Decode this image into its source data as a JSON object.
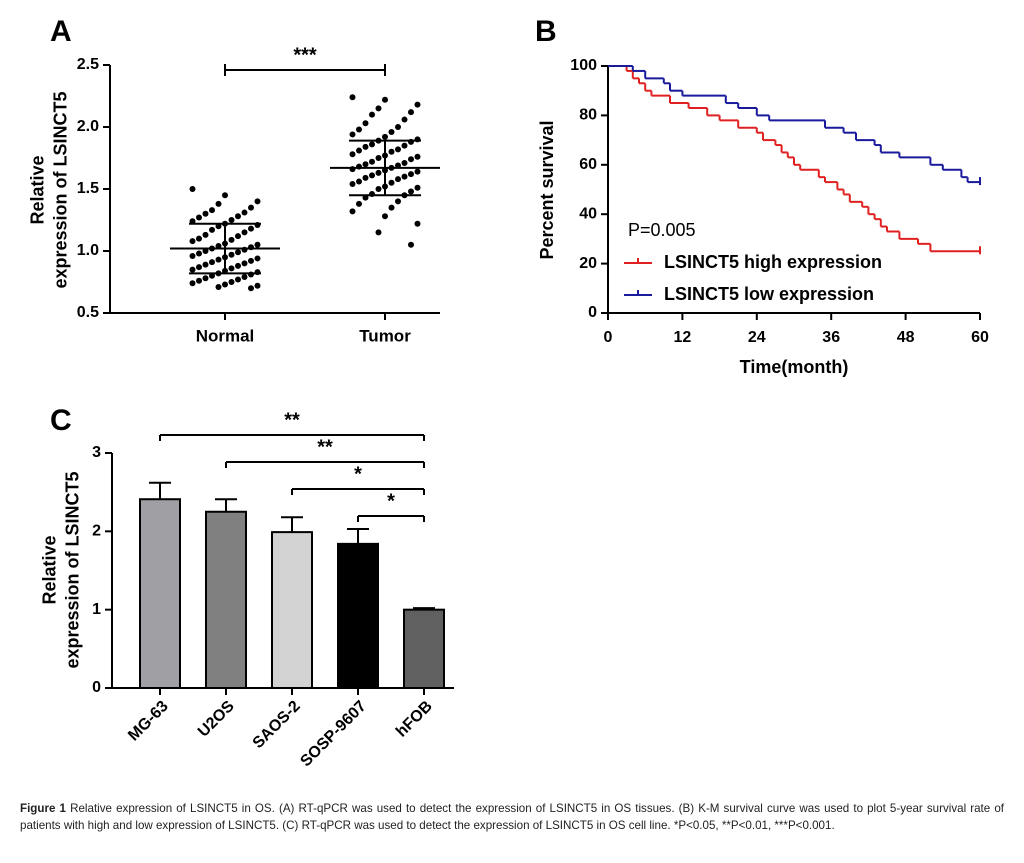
{
  "chart_data": [
    {
      "type": "dot",
      "panel": "A",
      "y_label": [
        "Relative",
        "expression of LSINCT5"
      ],
      "categories": [
        "Normal",
        "Tumor"
      ],
      "values": [
        [
          1.5,
          1.45,
          1.4,
          1.38,
          1.35,
          1.33,
          1.31,
          1.3,
          1.28,
          1.27,
          1.25,
          1.24,
          1.22,
          1.21,
          1.2,
          1.18,
          1.17,
          1.15,
          1.13,
          1.12,
          1.1,
          1.09,
          1.08,
          1.06,
          1.05,
          1.04,
          1.03,
          1.02,
          1.01,
          1.0,
          0.99,
          0.98,
          0.97,
          0.96,
          0.95,
          0.94,
          0.93,
          0.92,
          0.91,
          0.9,
          0.89,
          0.88,
          0.87,
          0.86,
          0.85,
          0.84,
          0.83,
          0.82,
          0.81,
          0.8,
          0.79,
          0.78,
          0.77,
          0.76,
          0.75,
          0.74,
          0.73,
          0.72,
          0.71,
          0.7
        ],
        [
          2.24,
          2.22,
          2.18,
          2.15,
          2.12,
          2.1,
          2.06,
          2.03,
          2.0,
          1.98,
          1.96,
          1.94,
          1.92,
          1.9,
          1.89,
          1.88,
          1.86,
          1.85,
          1.84,
          1.82,
          1.81,
          1.8,
          1.78,
          1.77,
          1.76,
          1.75,
          1.74,
          1.72,
          1.71,
          1.7,
          1.69,
          1.68,
          1.67,
          1.66,
          1.65,
          1.64,
          1.63,
          1.62,
          1.61,
          1.6,
          1.59,
          1.58,
          1.56,
          1.55,
          1.54,
          1.52,
          1.51,
          1.5,
          1.48,
          1.46,
          1.45,
          1.43,
          1.4,
          1.38,
          1.35,
          1.32,
          1.28,
          1.22,
          1.15,
          1.05
        ]
      ],
      "mean": [
        1.02,
        1.67
      ],
      "sd": [
        0.2,
        0.22
      ],
      "color": "#000000",
      "ylim": [
        0.5,
        2.5
      ],
      "yticks": [
        0.5,
        {
          "value": 1,
          "label": "1.0"
        },
        1.5,
        {
          "value": 2,
          "label": "2.0"
        },
        2.5
      ],
      "significance": [
        {
          "label": "***",
          "pair": [
            "Normal",
            "Tumor"
          ]
        }
      ]
    },
    {
      "type": "step",
      "panel": "B",
      "x_label": "Time(month)",
      "y_label": "Percent survival",
      "annotation": "P=0.005",
      "series": [
        {
          "name": "LSINCT5 high expression",
          "color": "#e02020",
          "x": [
            0,
            3,
            4,
            5,
            6,
            7,
            10,
            13,
            16,
            18,
            21,
            24,
            25,
            27,
            28,
            29,
            30,
            31,
            34,
            35,
            37,
            38,
            39,
            41,
            42,
            43,
            44,
            45,
            47,
            50,
            52,
            60
          ],
          "values": [
            100,
            98,
            95,
            93,
            90,
            88,
            85,
            83,
            80,
            78,
            75,
            73,
            70,
            68,
            65,
            63,
            60,
            58,
            55,
            53,
            50,
            48,
            45,
            43,
            40,
            38,
            35,
            33,
            30,
            28,
            25,
            25
          ]
        },
        {
          "name": "LSINCT5 low expression",
          "color": "#1a1a9c",
          "x": [
            0,
            4,
            6,
            9,
            10,
            12,
            19,
            21,
            24,
            26,
            35,
            38,
            40,
            43,
            44,
            47,
            52,
            54,
            57,
            58,
            60
          ],
          "values": [
            100,
            98,
            95,
            93,
            90,
            88,
            85,
            83,
            80,
            78,
            75,
            73,
            70,
            68,
            65,
            63,
            60,
            58,
            55,
            53,
            53
          ]
        }
      ],
      "xlim": [
        0,
        60
      ],
      "xticks": [
        0,
        12,
        24,
        36,
        48,
        60
      ],
      "ylim": [
        0,
        100
      ],
      "yticks": [
        0,
        20,
        40,
        60,
        80,
        100
      ]
    },
    {
      "type": "bar",
      "panel": "C",
      "y_label": [
        "Relative",
        "expression of LSINCT5"
      ],
      "categories": [
        "MG-63",
        "U2OS",
        "SAOS-2",
        "SOSP-9607",
        "hFOB"
      ],
      "values": [
        2.41,
        2.25,
        1.99,
        1.84,
        1.0
      ],
      "errors": [
        0.21,
        0.16,
        0.19,
        0.19,
        0.02
      ],
      "colors": [
        "#a0a0a4",
        "#808080",
        "#d3d3d3",
        "#000000",
        "#606060"
      ],
      "ylim": [
        0,
        3
      ],
      "yticks": [
        0,
        1,
        2,
        3
      ],
      "significance": [
        {
          "label": "**",
          "pair": [
            "MG-63",
            "hFOB"
          ]
        },
        {
          "label": "**",
          "pair": [
            "U2OS",
            "hFOB"
          ]
        },
        {
          "label": "*",
          "pair": [
            "SAOS-2",
            "hFOB"
          ]
        },
        {
          "label": "*",
          "pair": [
            "SOSP-9607",
            "hFOB"
          ]
        }
      ]
    }
  ],
  "caption": {
    "label": "Figure 1",
    "text": "Relative expression of LSINCT5 in OS. (A) RT-qPCR was used to detect the expression of LSINCT5 in OS tissues. (B) K-M survival curve was used to plot 5-year survival rate of patients with high and low expression of LSINCT5. (C) RT-qPCR was used to detect the expression of LSINCT5 in OS cell line. *P<0.05, **P<0.01, ***P<0.001."
  }
}
